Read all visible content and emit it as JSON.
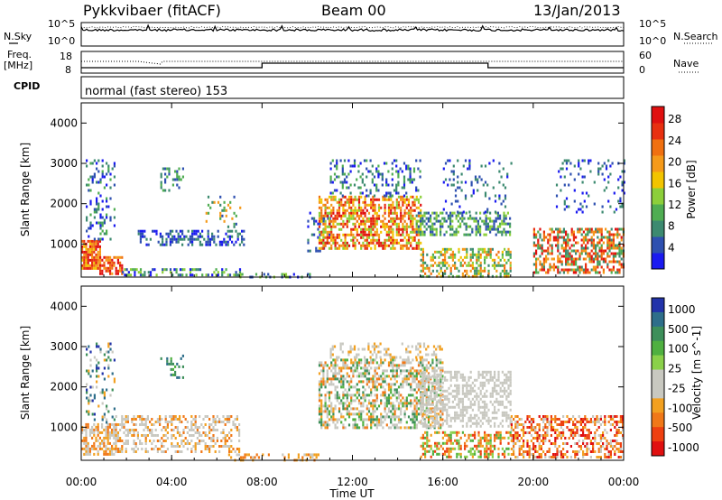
{
  "header": {
    "radar": "Pykkvibaer (fitACF)",
    "beam": "Beam 00",
    "date": "13/Jan/2013"
  },
  "noise_panel": {
    "left_label": "N.Sky",
    "left_ticks": [
      "10^5",
      "10^0"
    ],
    "right_ticks": [
      "10^5",
      "10^0"
    ],
    "right_label": "N.Search"
  },
  "freq_panel": {
    "left_label_1": "Freq.",
    "left_label_2": "[MHz]",
    "left_ticks": [
      "18",
      "8"
    ],
    "right_ticks": [
      "60",
      "0"
    ],
    "right_label": "Nave"
  },
  "cpid_panel": {
    "label": "CPID",
    "mode": "normal (fast stereo) 153"
  },
  "chart_data": [
    {
      "type": "heatmap",
      "panel": "power",
      "ylabel": "Slant Range [km]",
      "ylim": [
        180,
        4500
      ],
      "yticks": [
        "1000",
        "2000",
        "3000",
        "4000"
      ],
      "colorbar_label": "Power [dB]",
      "colorbar_ticks": [
        "4",
        "8",
        "12",
        "16",
        "20",
        "24",
        "28"
      ],
      "colors": [
        "#1a1af0",
        "#2e50b0",
        "#3c8a70",
        "#4fad52",
        "#8ccf3a",
        "#f2c400",
        "#f59a1a",
        "#f07010",
        "#e83010",
        "#e01010"
      ]
    },
    {
      "type": "heatmap",
      "panel": "velocity",
      "ylabel": "Slant Range [km]",
      "ylim": [
        180,
        4500
      ],
      "yticks": [
        "1000",
        "2000",
        "3000",
        "4000"
      ],
      "colorbar_label": "Velocity [m s^-1]",
      "colorbar_ticks": [
        "1000",
        "500",
        "100",
        "25",
        "-25",
        "-100",
        "-500",
        "-1000"
      ],
      "colors": [
        "#2233aa",
        "#2e6e8a",
        "#3d8f5a",
        "#4fb040",
        "#8ad04a",
        "#c8c8c0",
        "#c8c8c0",
        "#f2a020",
        "#f07818",
        "#ee4010",
        "#e01010"
      ]
    }
  ],
  "xaxis": {
    "ticks": [
      "00:00",
      "04:00",
      "08:00",
      "12:00",
      "16:00",
      "20:00",
      "00:00"
    ],
    "label": "Time UT"
  }
}
